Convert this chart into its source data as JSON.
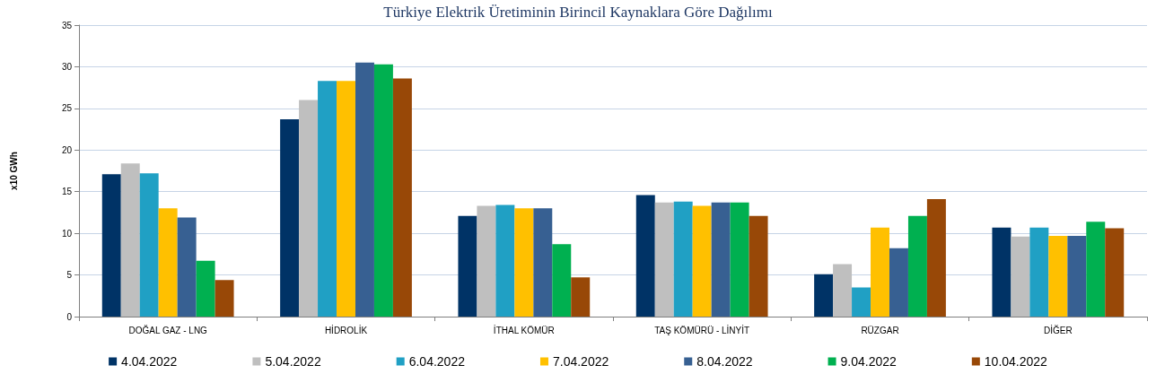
{
  "chart_data": {
    "type": "bar",
    "title": "Türkiye Elektrik Üretiminin Birincil Kaynaklara Göre Dağılımı",
    "ylabel": "x10 GWh",
    "categories": [
      "DOĞAL GAZ - LNG",
      "HİDROLİK",
      "İTHAL KÖMÜR",
      "TAŞ KÖMÜRÜ - LİNYİT",
      "RÜZGAR",
      "DİĞER"
    ],
    "series": [
      {
        "name": "4.04.2022",
        "color": "#003366",
        "values": [
          17.1,
          23.7,
          12.1,
          14.6,
          5.1,
          10.7
        ]
      },
      {
        "name": "5.04.2022",
        "color": "#bfbfbf",
        "values": [
          18.4,
          26.0,
          13.3,
          13.7,
          6.3,
          9.6
        ]
      },
      {
        "name": "6.04.2022",
        "color": "#20a0c4",
        "values": [
          17.2,
          28.3,
          13.4,
          13.8,
          3.5,
          10.7
        ]
      },
      {
        "name": "7.04.2022",
        "color": "#ffc000",
        "values": [
          13.0,
          28.3,
          13.0,
          13.3,
          10.7,
          9.7
        ]
      },
      {
        "name": "8.04.2022",
        "color": "#376092",
        "values": [
          11.9,
          30.5,
          13.0,
          13.7,
          8.2,
          9.7
        ]
      },
      {
        "name": "9.04.2022",
        "color": "#00b050",
        "values": [
          6.7,
          30.3,
          8.7,
          13.7,
          12.1,
          11.4
        ]
      },
      {
        "name": "10.04.2022",
        "color": "#984807",
        "values": [
          4.4,
          28.6,
          4.7,
          12.1,
          14.1,
          10.6
        ]
      }
    ],
    "ylim": [
      0,
      35
    ],
    "yticks": [
      0,
      5,
      10,
      15,
      20,
      25,
      30,
      35
    ],
    "grid": "y",
    "legend": "bottom"
  }
}
